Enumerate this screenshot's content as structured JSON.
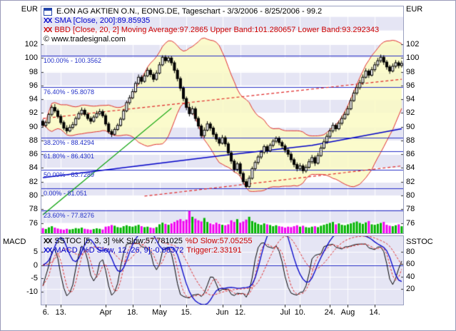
{
  "axes": {
    "left_unit": "EUR",
    "right_unit": "EUR",
    "lower_left_label": "MACD",
    "lower_right_label": "SSTOC"
  },
  "legend": {
    "title": "E.ON AG AKTIEN O.N., EONG.DE, Tageschart - 3/3/2006 - 8/25/2006 - 99.2",
    "sma_marks": "XX",
    "sma_label": "SMA [Close, 200]:89.85935",
    "bbd_marks": "XX",
    "bbd_label": "BBD [Close, 20, 2] Moving Average:97.2865 Upper Band:101.280657 Lower Band:93.292343",
    "copyright": "© www.tradesignal.com",
    "sstoc_marks": "XX",
    "sstoc_label": "SSTOC [5, 3, 3] %K Slow:57.781025",
    "sstoc_label_red": "%D Slow:57.05255",
    "macd_marks": "XX",
    "macd_label": "MACD [%D Slow, 12, 26, 9]:-0.08372",
    "macd_label_red": "Trigger:2.33191"
  },
  "chart_data": {
    "type": "candlestick",
    "price_axis": {
      "ticks": [
        102,
        100,
        98,
        96,
        94,
        92,
        90,
        88,
        86,
        84,
        82,
        80,
        78,
        76
      ],
      "range": [
        74.5,
        107.5
      ]
    },
    "x_labels": [
      {
        "label": "6.",
        "i": 1
      },
      {
        "label": "13.",
        "i": 6
      },
      {
        "label": "Apr",
        "i": 21
      },
      {
        "label": "18.",
        "i": 30
      },
      {
        "label": "May",
        "i": 39
      },
      {
        "label": "15.",
        "i": 48
      },
      {
        "label": "Jun",
        "i": 60
      },
      {
        "label": "12.",
        "i": 66
      },
      {
        "label": "Jul",
        "i": 81
      },
      {
        "label": "10.",
        "i": 86
      },
      {
        "label": "24.",
        "i": 96
      },
      {
        "label": "Aug",
        "i": 102
      },
      {
        "label": "14.",
        "i": 111
      }
    ],
    "candles": [
      [
        90.8,
        91.1,
        89.9,
        90.2
      ],
      [
        90.2,
        90.9,
        89.9,
        90.6
      ],
      [
        90.6,
        92.0,
        90.4,
        91.8
      ],
      [
        91.8,
        93.1,
        91.5,
        92.8
      ],
      [
        92.8,
        93.3,
        92.0,
        92.3
      ],
      [
        92.3,
        92.6,
        91.2,
        91.5
      ],
      [
        91.5,
        91.8,
        90.3,
        90.6
      ],
      [
        90.6,
        90.9,
        89.5,
        89.8
      ],
      [
        89.8,
        90.2,
        89.0,
        89.4
      ],
      [
        89.4,
        90.3,
        89.2,
        89.9
      ],
      [
        89.9,
        90.7,
        89.6,
        90.3
      ],
      [
        90.3,
        91.5,
        90.1,
        91.2
      ],
      [
        91.2,
        92.2,
        91.0,
        91.9
      ],
      [
        91.9,
        92.8,
        91.6,
        92.4
      ],
      [
        92.4,
        92.7,
        91.5,
        91.8
      ],
      [
        91.8,
        92.1,
        90.9,
        91.2
      ],
      [
        91.2,
        91.5,
        90.4,
        90.8
      ],
      [
        90.8,
        91.7,
        90.6,
        91.4
      ],
      [
        91.4,
        92.3,
        91.2,
        91.9
      ],
      [
        91.9,
        92.6,
        91.6,
        92.2
      ],
      [
        92.2,
        92.5,
        91.3,
        91.6
      ],
      [
        91.6,
        91.9,
        90.1,
        90.4
      ],
      [
        90.4,
        90.7,
        89.0,
        89.3
      ],
      [
        89.3,
        89.6,
        88.5,
        88.9
      ],
      [
        88.9,
        89.9,
        88.7,
        89.6
      ],
      [
        89.6,
        90.5,
        89.4,
        90.2
      ],
      [
        90.2,
        91.4,
        90.0,
        91.1
      ],
      [
        91.1,
        92.6,
        90.9,
        92.3
      ],
      [
        92.3,
        93.8,
        92.1,
        93.5
      ],
      [
        93.5,
        94.6,
        93.2,
        94.2
      ],
      [
        94.2,
        95.5,
        94.0,
        95.1
      ],
      [
        95.1,
        96.6,
        94.9,
        96.3
      ],
      [
        96.3,
        97.6,
        96.1,
        97.2
      ],
      [
        97.2,
        97.5,
        96.2,
        96.6
      ],
      [
        96.6,
        97.8,
        96.4,
        97.4
      ],
      [
        97.4,
        98.6,
        97.2,
        98.2
      ],
      [
        98.2,
        98.5,
        97.2,
        97.6
      ],
      [
        97.6,
        97.9,
        96.5,
        96.9
      ],
      [
        96.9,
        98.2,
        96.7,
        97.8
      ],
      [
        97.8,
        99.4,
        97.6,
        99.0
      ],
      [
        99.0,
        100.4,
        98.8,
        100.1
      ],
      [
        100.1,
        100.4,
        99.2,
        99.6
      ],
      [
        99.6,
        100.3,
        99.3,
        100.0
      ],
      [
        100.0,
        100.3,
        98.9,
        99.3
      ],
      [
        99.3,
        99.6,
        97.8,
        98.2
      ],
      [
        98.2,
        98.5,
        96.6,
        97.0
      ],
      [
        97.0,
        97.3,
        95.2,
        95.6
      ],
      [
        95.6,
        95.9,
        93.7,
        94.1
      ],
      [
        94.1,
        94.4,
        92.4,
        92.8
      ],
      [
        92.8,
        93.4,
        91.5,
        91.9
      ],
      [
        91.9,
        93.0,
        91.7,
        92.6
      ],
      [
        92.6,
        92.9,
        90.8,
        91.2
      ],
      [
        91.2,
        91.5,
        89.7,
        90.1
      ],
      [
        90.1,
        90.4,
        88.3,
        88.7
      ],
      [
        88.7,
        89.9,
        88.4,
        89.5
      ],
      [
        89.5,
        90.8,
        89.3,
        90.4
      ],
      [
        90.4,
        90.7,
        89.4,
        89.8
      ],
      [
        89.8,
        90.1,
        88.5,
        88.9
      ],
      [
        88.9,
        89.2,
        87.8,
        88.2
      ],
      [
        88.2,
        88.5,
        87.2,
        87.6
      ],
      [
        87.6,
        88.8,
        87.4,
        88.4
      ],
      [
        88.4,
        88.7,
        87.1,
        87.5
      ],
      [
        87.5,
        87.8,
        85.8,
        86.2
      ],
      [
        86.2,
        86.5,
        84.6,
        85.0
      ],
      [
        85.0,
        85.3,
        83.4,
        83.8
      ],
      [
        83.8,
        84.9,
        83.5,
        84.6
      ],
      [
        84.6,
        84.9,
        82.8,
        83.2
      ],
      [
        83.2,
        83.5,
        81.6,
        82.0
      ],
      [
        82.0,
        82.4,
        81.1,
        81.3
      ],
      [
        81.3,
        82.9,
        81.1,
        82.5
      ],
      [
        82.5,
        84.2,
        82.3,
        83.9
      ],
      [
        83.9,
        85.1,
        83.6,
        84.8
      ],
      [
        84.8,
        85.9,
        84.5,
        85.6
      ],
      [
        85.6,
        86.6,
        85.3,
        86.3
      ],
      [
        86.3,
        87.4,
        86.0,
        87.1
      ],
      [
        87.1,
        87.4,
        86.1,
        86.5
      ],
      [
        86.5,
        87.6,
        86.3,
        87.3
      ],
      [
        87.3,
        88.2,
        87.0,
        87.9
      ],
      [
        87.9,
        88.6,
        87.6,
        88.3
      ],
      [
        88.3,
        88.6,
        87.3,
        87.7
      ],
      [
        87.7,
        88.0,
        86.8,
        87.2
      ],
      [
        87.2,
        87.5,
        86.2,
        86.6
      ],
      [
        86.6,
        86.9,
        85.6,
        86.0
      ],
      [
        86.0,
        86.3,
        84.8,
        85.2
      ],
      [
        85.2,
        85.5,
        84.1,
        84.5
      ],
      [
        84.5,
        84.8,
        83.5,
        83.9
      ],
      [
        83.9,
        84.7,
        83.6,
        84.3
      ],
      [
        84.3,
        84.6,
        83.2,
        83.6
      ],
      [
        83.6,
        84.5,
        83.3,
        84.1
      ],
      [
        84.1,
        85.3,
        83.9,
        84.9
      ],
      [
        84.9,
        85.9,
        84.6,
        85.5
      ],
      [
        85.5,
        85.8,
        84.3,
        84.7
      ],
      [
        84.7,
        86.2,
        84.5,
        85.8
      ],
      [
        85.8,
        87.3,
        85.6,
        86.9
      ],
      [
        86.9,
        88.2,
        86.7,
        87.8
      ],
      [
        87.8,
        89.0,
        87.5,
        88.6
      ],
      [
        88.6,
        89.8,
        88.3,
        89.4
      ],
      [
        89.4,
        90.6,
        89.1,
        90.2
      ],
      [
        90.2,
        90.5,
        89.3,
        89.7
      ],
      [
        89.7,
        90.9,
        89.5,
        90.5
      ],
      [
        90.5,
        91.6,
        90.2,
        91.2
      ],
      [
        91.2,
        92.2,
        91.0,
        91.8
      ],
      [
        91.8,
        93.0,
        91.6,
        92.6
      ],
      [
        92.6,
        94.2,
        92.4,
        93.8
      ],
      [
        93.8,
        95.3,
        93.6,
        94.9
      ],
      [
        94.9,
        96.1,
        94.6,
        95.7
      ],
      [
        95.7,
        96.8,
        95.4,
        96.4
      ],
      [
        96.4,
        97.6,
        96.1,
        97.2
      ],
      [
        97.2,
        98.5,
        97.0,
        98.1
      ],
      [
        98.1,
        98.4,
        97.1,
        97.5
      ],
      [
        97.5,
        98.7,
        97.3,
        98.3
      ],
      [
        98.3,
        99.4,
        98.0,
        99.0
      ],
      [
        99.0,
        100.0,
        98.7,
        99.6
      ],
      [
        99.6,
        100.5,
        99.3,
        100.1
      ],
      [
        100.1,
        100.4,
        99.0,
        99.4
      ],
      [
        99.4,
        99.7,
        98.3,
        98.7
      ],
      [
        98.7,
        99.0,
        97.7,
        98.1
      ],
      [
        98.1,
        99.2,
        97.9,
        98.8
      ],
      [
        98.8,
        99.7,
        98.5,
        99.3
      ],
      [
        99.3,
        99.6,
        98.5,
        98.9
      ],
      [
        98.9,
        99.6,
        98.6,
        99.2
      ]
    ],
    "volumes": [
      22,
      18,
      25,
      30,
      24,
      20,
      17,
      15,
      19,
      16,
      18,
      22,
      20,
      24,
      19,
      17,
      15,
      18,
      21,
      19,
      16,
      28,
      30,
      35,
      32,
      26,
      24,
      30,
      34,
      30,
      28,
      32,
      36,
      30,
      26,
      28,
      24,
      22,
      26,
      38,
      45,
      40,
      36,
      42,
      48,
      55,
      60,
      52,
      58,
      95,
      70,
      62,
      55,
      50,
      65,
      48,
      42,
      38,
      45,
      40,
      36,
      34,
      38,
      55,
      48,
      60,
      45,
      50,
      58,
      70,
      52,
      46,
      40,
      36,
      42,
      38,
      35,
      30,
      34,
      30,
      28,
      24,
      28,
      26,
      30,
      34,
      28,
      32,
      26,
      24,
      28,
      30,
      26,
      32,
      36,
      40,
      44,
      48,
      38,
      42,
      36,
      34,
      38,
      42,
      46,
      50,
      44,
      40,
      46,
      52,
      38,
      36,
      40,
      44,
      48,
      36,
      32,
      30,
      34,
      38,
      30
    ],
    "overlays": {
      "sma200_points": [
        [
          0,
          82.6
        ],
        [
          30,
          84.2
        ],
        [
          60,
          85.8
        ],
        [
          90,
          87.3
        ],
        [
          120,
          89.7
        ]
      ],
      "bollinger": {
        "period": 20,
        "stdev": 2
      },
      "fib_levels": [
        {
          "label": "100.00% - 100.3562",
          "value": 100.3562
        },
        {
          "label": "76.40% - 95.8078",
          "value": 95.8078
        },
        {
          "label": "38.20% - 88.4294",
          "value": 88.4294
        },
        {
          "label": "61.80% - 86.4301",
          "value": 86.4301
        },
        {
          "label": "50.00% - 83.7289",
          "value": 83.7289
        },
        {
          "label": "0.00% - 81.051",
          "value": 81.051
        },
        {
          "label": "23.60% - 77.8276",
          "value": 77.8276
        }
      ],
      "trendlines": [
        {
          "style": "dashed",
          "color": "#e02828",
          "from": [
            0,
            91.2
          ],
          "to": [
            120,
            96.9
          ]
        },
        {
          "style": "dashed",
          "color": "#e02828",
          "from": [
            34,
            79.9
          ],
          "to": [
            120,
            84.3
          ]
        },
        {
          "style": "solid",
          "color": "#00a000",
          "from": [
            0,
            77.2
          ],
          "to": [
            43,
            92.7
          ]
        }
      ]
    },
    "lower_pane": {
      "macd_axis": {
        "label": "MACD",
        "ticks": [
          5,
          0,
          -5,
          -10
        ],
        "range": [
          -15,
          11
        ]
      },
      "sstoc_axis": {
        "label": "SSTOC",
        "ticks": [
          80,
          60,
          40,
          20
        ],
        "range": [
          -5,
          105
        ]
      },
      "stochastic": {
        "k_period": 5,
        "k_smooth": 3,
        "d_smooth": 3
      },
      "macd": {
        "fast": 12,
        "slow": 26,
        "signal": 9,
        "source": "%D Slow"
      }
    },
    "colors": {
      "stripe": "#e5e5f4",
      "grid": "#ffffff",
      "fib": "#2830c8",
      "sma": "#0000c8",
      "bb_line": "#e03030",
      "bb_fill": "rgba(250,250,195,0.85)",
      "candle_up": "#ffffff",
      "candle_down": "#000000",
      "outline": "#000000",
      "vol_up": "#00b400",
      "vol_down": "#f000f0",
      "macd": "#0000c8",
      "trigger": "#e03030",
      "k_line": "#000000",
      "d_line": "#e03030",
      "zero_line": "#2830c8"
    }
  }
}
